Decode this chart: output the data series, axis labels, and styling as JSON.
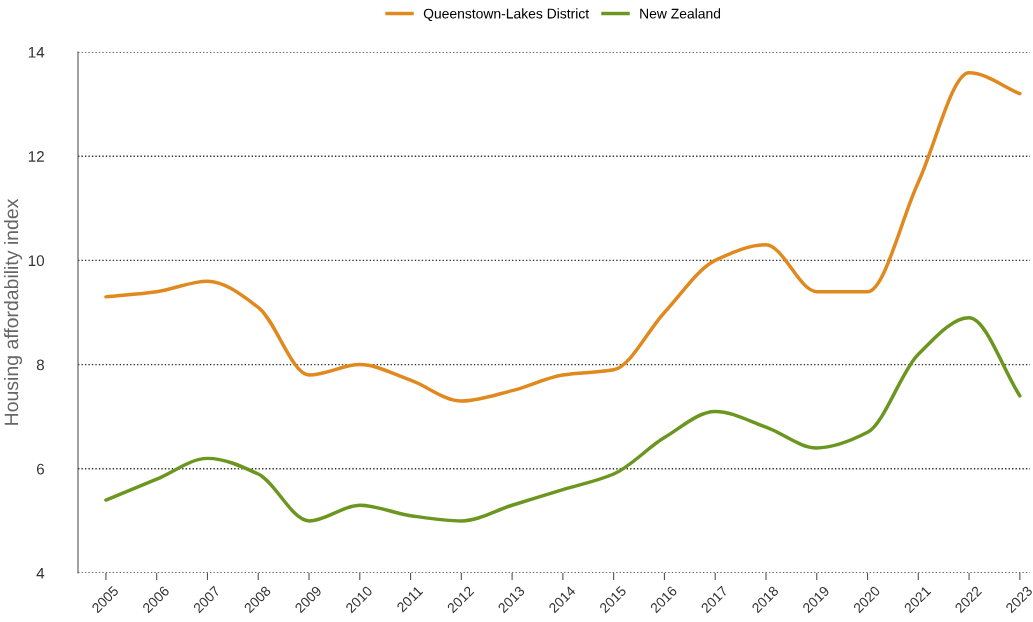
{
  "chart_data": {
    "type": "line",
    "ylabel": "Housing affordability index",
    "categories": [
      "2005",
      "2006",
      "2007",
      "2008",
      "2009",
      "2010",
      "2011",
      "2012",
      "2013",
      "2014",
      "2015",
      "2016",
      "2017",
      "2018",
      "2019",
      "2020",
      "2021",
      "2022",
      "2023"
    ],
    "series": [
      {
        "name": "Queenstown-Lakes District",
        "color": "#e0891f",
        "values": [
          9.3,
          9.4,
          9.6,
          9.1,
          7.8,
          8.0,
          7.7,
          7.3,
          7.5,
          7.8,
          7.9,
          9.0,
          10.0,
          10.3,
          9.4,
          9.4,
          11.5,
          13.6,
          13.2
        ]
      },
      {
        "name": "New Zealand",
        "color": "#6b961f",
        "values": [
          5.4,
          5.8,
          6.2,
          5.9,
          5.0,
          5.3,
          5.1,
          5.0,
          5.3,
          5.6,
          5.9,
          6.6,
          7.1,
          6.8,
          6.4,
          6.7,
          8.2,
          8.9,
          7.4
        ]
      }
    ],
    "ylim": [
      4,
      14
    ],
    "yticks": [
      4,
      6,
      8,
      10,
      12,
      14
    ],
    "grid": "y",
    "legend": "top",
    "marker": "none",
    "line_style": "solid"
  }
}
